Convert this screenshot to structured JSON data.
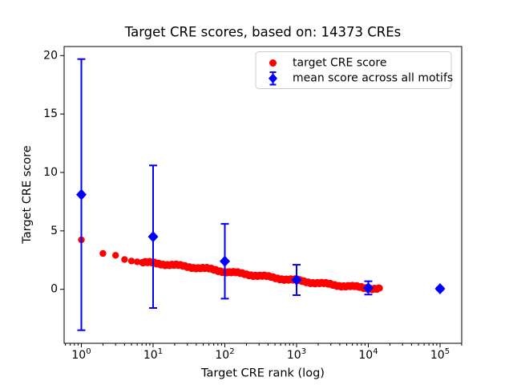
{
  "chart_data": {
    "type": "scatter",
    "title": "Target CRE scores, based on: 14373 CREs",
    "xlabel": "Target CRE rank (log)",
    "ylabel": "Target CRE score",
    "xscale": "log",
    "xlim": [
      0.575,
      200000
    ],
    "ylim": [
      -4.6,
      20.8
    ],
    "xticks": [
      1,
      10,
      100,
      1000,
      10000,
      100000
    ],
    "xtick_labels": [
      "10^0",
      "10^1",
      "10^2",
      "10^3",
      "10^4",
      "10^5"
    ],
    "yticks": [
      0,
      5,
      10,
      15,
      20
    ],
    "grid": false,
    "n_cres": 14373,
    "colors": {
      "target_points": "#ff0000",
      "mean_points": "#0000ff",
      "axes": "#000000",
      "legend_border": "#cccccc",
      "background": "#ffffff"
    },
    "legend": {
      "position": "upper center",
      "entries": [
        "target CRE score",
        "mean score across all motifs"
      ]
    },
    "series": [
      {
        "name": "target CRE score",
        "type": "scatter",
        "marker": "circle",
        "color": "#ff0000",
        "n_points_depicted": 14373,
        "sampled_points": [
          [
            1,
            4.23
          ],
          [
            2,
            3.07
          ],
          [
            3,
            2.91
          ],
          [
            4,
            2.55
          ],
          [
            5,
            2.42
          ],
          [
            6,
            2.35
          ],
          [
            7,
            2.3
          ],
          [
            8,
            2.28
          ],
          [
            10,
            2.25
          ],
          [
            13,
            2.18
          ],
          [
            16,
            2.12
          ],
          [
            20,
            2.06
          ],
          [
            26,
            1.98
          ],
          [
            33,
            1.91
          ],
          [
            42,
            1.84
          ],
          [
            55,
            1.76
          ],
          [
            70,
            1.67
          ],
          [
            90,
            1.56
          ],
          [
            100,
            1.52
          ],
          [
            130,
            1.43
          ],
          [
            170,
            1.34
          ],
          [
            220,
            1.26
          ],
          [
            280,
            1.18
          ],
          [
            360,
            1.1
          ],
          [
            460,
            1.01
          ],
          [
            600,
            0.92
          ],
          [
            750,
            0.84
          ],
          [
            1000,
            0.76
          ],
          [
            1300,
            0.67
          ],
          [
            1700,
            0.58
          ],
          [
            2200,
            0.5
          ],
          [
            2900,
            0.42
          ],
          [
            3700,
            0.35
          ],
          [
            4800,
            0.28
          ],
          [
            6200,
            0.22
          ],
          [
            8000,
            0.16
          ],
          [
            10000,
            0.11
          ],
          [
            12000,
            0.07
          ],
          [
            14373,
            0.03
          ]
        ]
      },
      {
        "name": "mean score across all motifs",
        "type": "errorbar",
        "marker": "diamond",
        "color": "#0000ff",
        "x": [
          1,
          10,
          100,
          1000,
          10000,
          100000
        ],
        "mean": [
          8.1,
          4.5,
          2.4,
          0.8,
          0.12,
          0.05
        ],
        "err": [
          11.6,
          6.1,
          3.2,
          1.3,
          0.57,
          0.1
        ]
      }
    ]
  }
}
